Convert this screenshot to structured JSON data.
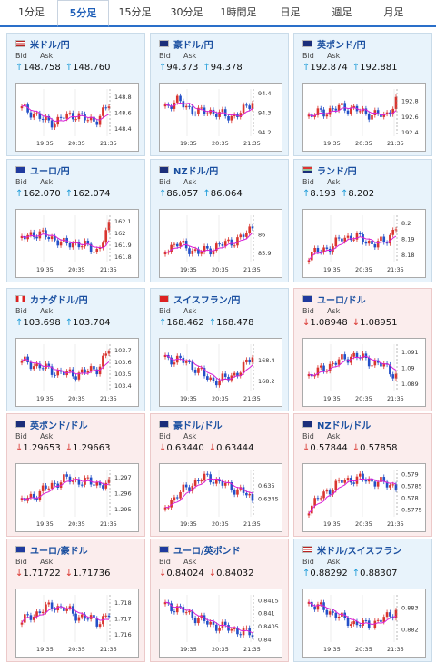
{
  "tabs": [
    {
      "label": "1分足"
    },
    {
      "label": "5分足",
      "active": true
    },
    {
      "label": "15分足"
    },
    {
      "label": "30分足"
    },
    {
      "label": "1時間足"
    },
    {
      "label": "日足"
    },
    {
      "label": "週足"
    },
    {
      "label": "月足"
    }
  ],
  "labels": {
    "bid": "Bid",
    "ask": "Ask"
  },
  "colors": {
    "up_arrow": "#1c9bd8",
    "down_arrow": "#d9352f",
    "candle_up": "#d9352f",
    "candle_down": "#2450c8",
    "ma_line": "#d81fd8",
    "pair_text": "#1a4fa0"
  },
  "cards": [
    {
      "pair": "米ドル/円",
      "flag": "us",
      "dir": "up",
      "bid": "148.758",
      "ask": "148.760",
      "chart_data": {
        "type": "candlestick",
        "x_ticks": [
          "19:35",
          "20:35",
          "21:35"
        ],
        "y_ticks": [
          "148.8",
          "148.6",
          "148.4"
        ],
        "ylim": [
          148.3,
          148.9
        ],
        "trend": [
          148.65,
          148.6,
          148.5,
          148.48,
          148.55,
          148.58,
          148.5,
          148.52,
          148.7
        ]
      }
    },
    {
      "pair": "豪ドル/円",
      "flag": "au",
      "dir": "up",
      "bid": "94.373",
      "ask": "94.378",
      "chart_data": {
        "type": "candlestick",
        "x_ticks": [
          "19:35",
          "20:35",
          "21:35"
        ],
        "y_ticks": [
          "94.4",
          "94.3",
          "94.2"
        ],
        "ylim": [
          94.18,
          94.42
        ],
        "trend": [
          94.33,
          94.36,
          94.33,
          94.3,
          94.31,
          94.29,
          94.28,
          94.3,
          94.36
        ]
      }
    },
    {
      "pair": "英ポンド/円",
      "flag": "gb",
      "dir": "up",
      "bid": "192.874",
      "ask": "192.881",
      "chart_data": {
        "type": "candlestick",
        "x_ticks": [
          "19:35",
          "20:35",
          "21:35"
        ],
        "y_ticks": [
          "192.8",
          "192.6",
          "192.4"
        ],
        "ylim": [
          192.35,
          192.95
        ],
        "trend": [
          192.6,
          192.65,
          192.68,
          192.72,
          192.7,
          192.65,
          192.63,
          192.6,
          192.8
        ]
      }
    },
    {
      "pair": "ユーロ/円",
      "flag": "eu",
      "dir": "up",
      "bid": "162.070",
      "ask": "162.074",
      "chart_data": {
        "type": "candlestick",
        "x_ticks": [
          "19:35",
          "20:35",
          "21:35"
        ],
        "y_ticks": [
          "162.1",
          "162",
          "161.9",
          "161.8"
        ],
        "ylim": [
          161.75,
          162.15
        ],
        "trend": [
          161.95,
          162.0,
          161.98,
          161.95,
          161.9,
          161.92,
          161.88,
          161.85,
          162.05
        ]
      }
    },
    {
      "pair": "NZドル/円",
      "flag": "nz",
      "dir": "up",
      "bid": "86.057",
      "ask": "86.064",
      "chart_data": {
        "type": "candlestick",
        "x_ticks": [
          "19:35",
          "20:35",
          "21:35"
        ],
        "y_ticks": [
          "86",
          "85.9"
        ],
        "ylim": [
          85.85,
          86.1
        ],
        "trend": [
          85.92,
          85.95,
          85.93,
          85.9,
          85.92,
          85.94,
          85.96,
          85.98,
          86.04
        ]
      }
    },
    {
      "pair": "ランド/円",
      "flag": "za",
      "dir": "up",
      "bid": "8.193",
      "ask": "8.202",
      "chart_data": {
        "type": "candlestick",
        "x_ticks": [
          "19:35",
          "20:35",
          "21:35"
        ],
        "y_ticks": [
          "8.2",
          "8.19",
          "8.18"
        ],
        "ylim": [
          8.175,
          8.205
        ],
        "trend": [
          8.18,
          8.182,
          8.185,
          8.19,
          8.192,
          8.189,
          8.187,
          8.188,
          8.198
        ]
      }
    },
    {
      "pair": "カナダドル/円",
      "flag": "ca",
      "dir": "up",
      "bid": "103.698",
      "ask": "103.704",
      "chart_data": {
        "type": "candlestick",
        "x_ticks": [
          "19:35",
          "20:35",
          "21:35"
        ],
        "y_ticks": [
          "103.7",
          "103.6",
          "103.5",
          "103.4"
        ],
        "ylim": [
          103.35,
          103.75
        ],
        "trend": [
          103.6,
          103.58,
          103.55,
          103.52,
          103.5,
          103.5,
          103.52,
          103.55,
          103.7
        ]
      }
    },
    {
      "pair": "スイスフラン/円",
      "flag": "ch",
      "dir": "up",
      "bid": "168.462",
      "ask": "168.478",
      "chart_data": {
        "type": "candlestick",
        "x_ticks": [
          "19:35",
          "20:35",
          "21:35"
        ],
        "y_ticks": [
          "168.4",
          "168.2"
        ],
        "ylim": [
          168.1,
          168.55
        ],
        "trend": [
          168.42,
          168.4,
          168.38,
          168.3,
          168.22,
          168.2,
          168.25,
          168.3,
          168.45
        ]
      }
    },
    {
      "pair": "ユーロ/ドル",
      "flag": "eu",
      "dir": "down",
      "bid": "1.08948",
      "ask": "1.08951",
      "chart_data": {
        "type": "candlestick",
        "x_ticks": [
          "19:35",
          "20:35",
          "21:35"
        ],
        "y_ticks": [
          "1.091",
          "1.09",
          "1.089"
        ],
        "ylim": [
          1.0885,
          1.0915
        ],
        "trend": [
          1.0895,
          1.0898,
          1.0902,
          1.0905,
          1.0908,
          1.0906,
          1.0903,
          1.0901,
          1.0895
        ]
      }
    },
    {
      "pair": "英ポンド/ドル",
      "flag": "gb",
      "dir": "down",
      "bid": "1.29653",
      "ask": "1.29663",
      "chart_data": {
        "type": "candlestick",
        "x_ticks": [
          "19:35",
          "20:35",
          "21:35"
        ],
        "y_ticks": [
          "1.297",
          "1.296",
          "1.295"
        ],
        "ylim": [
          1.2945,
          1.2975
        ],
        "trend": [
          1.2955,
          1.2958,
          1.2962,
          1.2966,
          1.2969,
          1.2968,
          1.2967,
          1.2966,
          1.2965
        ]
      }
    },
    {
      "pair": "豪ドル/ドル",
      "flag": "au",
      "dir": "down",
      "bid": "0.63440",
      "ask": "0.63444",
      "chart_data": {
        "type": "candlestick",
        "x_ticks": [
          "19:35",
          "20:35",
          "21:35"
        ],
        "y_ticks": [
          "0.635",
          "0.6345"
        ],
        "ylim": [
          0.6338,
          0.6356
        ],
        "trend": [
          0.6342,
          0.6346,
          0.6349,
          0.6352,
          0.6353,
          0.6351,
          0.6349,
          0.6348,
          0.6344
        ]
      }
    },
    {
      "pair": "NZドル/ドル",
      "flag": "nz",
      "dir": "down",
      "bid": "0.57844",
      "ask": "0.57858",
      "chart_data": {
        "type": "candlestick",
        "x_ticks": [
          "19:35",
          "20:35",
          "21:35"
        ],
        "y_ticks": [
          "0.579",
          "0.5785",
          "0.578",
          "0.5775"
        ],
        "ylim": [
          0.5772,
          0.5792
        ],
        "trend": [
          0.5776,
          0.578,
          0.5784,
          0.5787,
          0.5788,
          0.5788,
          0.5787,
          0.5786,
          0.5785
        ]
      }
    },
    {
      "pair": "ユーロ/豪ドル",
      "flag": "eu",
      "dir": "down",
      "bid": "1.71722",
      "ask": "1.71736",
      "chart_data": {
        "type": "candlestick",
        "x_ticks": [
          "19:35",
          "20:35",
          "21:35"
        ],
        "y_ticks": [
          "1.718",
          "1.717",
          "1.716"
        ],
        "ylim": [
          1.7155,
          1.7185
        ],
        "trend": [
          1.7168,
          1.7172,
          1.7176,
          1.7178,
          1.7176,
          1.7172,
          1.717,
          1.7168,
          1.7172
        ]
      }
    },
    {
      "pair": "ユーロ/英ポンド",
      "flag": "eu",
      "dir": "down",
      "bid": "0.84024",
      "ask": "0.84032",
      "chart_data": {
        "type": "candlestick",
        "x_ticks": [
          "19:35",
          "20:35",
          "21:35"
        ],
        "y_ticks": [
          "0.8415",
          "0.841",
          "0.8405",
          "0.84"
        ],
        "ylim": [
          0.8399,
          0.8417
        ],
        "trend": [
          0.8413,
          0.8412,
          0.841,
          0.8408,
          0.8406,
          0.8405,
          0.8404,
          0.8403,
          0.8402
        ]
      }
    },
    {
      "pair": "米ドル/スイスフラン",
      "flag": "us",
      "dir": "up",
      "bid": "0.88292",
      "ask": "0.88307",
      "chart_data": {
        "type": "candlestick",
        "x_ticks": [
          "19:35",
          "20:35",
          "21:35"
        ],
        "y_ticks": [
          "0.883",
          "0.882"
        ],
        "ylim": [
          0.8814,
          0.8836
        ],
        "trend": [
          0.8832,
          0.883,
          0.8828,
          0.8825,
          0.8823,
          0.8822,
          0.8823,
          0.8825,
          0.8829
        ]
      }
    }
  ]
}
